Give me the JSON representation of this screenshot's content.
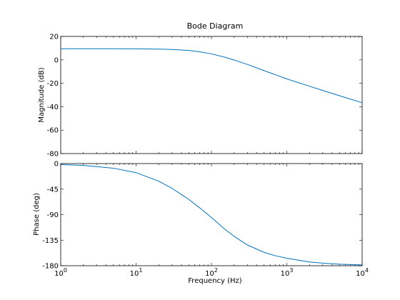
{
  "chart_data": {
    "type": "line",
    "title": "Bode Diagram",
    "xlabel": "Frequency  (Hz)",
    "x_scale": "log",
    "xlim": [
      1,
      10000
    ],
    "x_ticks": [
      {
        "value": 1,
        "mantissa": "10",
        "exp": "0"
      },
      {
        "value": 10,
        "mantissa": "10",
        "exp": "1"
      },
      {
        "value": 100,
        "mantissa": "10",
        "exp": "2"
      },
      {
        "value": 1000,
        "mantissa": "10",
        "exp": "3"
      },
      {
        "value": 10000,
        "mantissa": "10",
        "exp": "4"
      }
    ],
    "grid": false,
    "line_color": "#0072bd",
    "subplots": [
      {
        "ylabel": "Magnitude (dB)",
        "ylim": [
          -80,
          20
        ],
        "yticks": [
          20,
          0,
          -20,
          -40,
          -60,
          -80
        ],
        "x": [
          1,
          5,
          10,
          20,
          30,
          50,
          70,
          100,
          150,
          200,
          300,
          500,
          700,
          1000,
          2000,
          3000,
          5000,
          7000,
          10000
        ],
        "y": [
          9.5,
          9.5,
          9.4,
          9.2,
          8.9,
          8,
          6.9,
          5.1,
          2.3,
          -0.1,
          -3.9,
          -9.2,
          -12.6,
          -16.3,
          -22.5,
          -26.1,
          -30.6,
          -33.5,
          -36.6
        ]
      },
      {
        "ylabel": "Phase (deg)",
        "ylim": [
          -180,
          0
        ],
        "yticks": [
          0,
          -45,
          -90,
          -135,
          -180
        ],
        "x": [
          1,
          2,
          5,
          10,
          20,
          30,
          50,
          70,
          100,
          150,
          200,
          300,
          500,
          700,
          1000,
          2000,
          3000,
          5000,
          7000,
          10000
        ],
        "y": [
          -1.7,
          -3.3,
          -8.1,
          -16,
          -31.1,
          -43.6,
          -63.1,
          -78.1,
          -95.1,
          -115.5,
          -128.2,
          -143.5,
          -156.4,
          -162.3,
          -166.8,
          -173.4,
          -175.5,
          -177.3,
          -178,
          -178.6
        ]
      }
    ]
  }
}
